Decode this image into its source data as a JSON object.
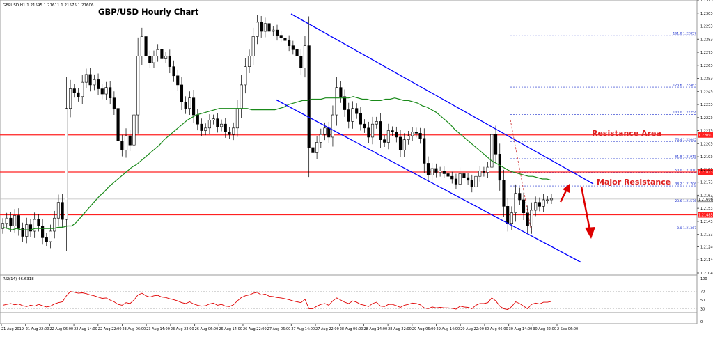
{
  "header": {
    "symbol_info": "GBPUSD,H1  1.21595 1.21611 1.21575 1.21606"
  },
  "chart_data": [
    {
      "type": "candlestick",
      "title": "GBP/USD Hourly Chart",
      "ylim": [
        1.2104,
        1.2313
      ],
      "y_ticks": [
        "1.23130",
        "1.23030",
        "1.22930",
        "1.22830",
        "1.22730",
        "1.22630",
        "1.22530",
        "1.22430",
        "1.22330",
        "1.22230",
        "1.22130",
        "1.22030",
        "1.21930",
        "1.21835",
        "1.21735",
        "1.21635",
        "1.21535",
        "1.21435",
        "1.21335",
        "1.21240",
        "1.21140",
        "1.21040"
      ],
      "x_ticks": [
        "21 Aug 2019",
        "21 Aug 22:00",
        "22 Aug 06:00",
        "22 Aug 14:00",
        "22 Aug 22:00",
        "23 Aug 06:00",
        "23 Aug 14:00",
        "23 Aug 22:00",
        "26 Aug 06:00",
        "26 Aug 14:00",
        "26 Aug 22:00",
        "27 Aug 06:00",
        "27 Aug 14:00",
        "27 Aug 22:00",
        "28 Aug 06:00",
        "28 Aug 14:00",
        "28 Aug 22:00",
        "29 Aug 06:00",
        "29 Aug 14:00",
        "29 Aug 22:00",
        "30 Aug 06:00",
        "30 Aug 14:00",
        "30 Aug 22:00",
        "2 Sep 06:00"
      ],
      "current_price": "1.21606",
      "series": [
        {
          "closes": [
            1.2142,
            1.2146,
            1.214,
            1.2148,
            1.2138,
            1.2132,
            1.2141,
            1.2136,
            1.2145,
            1.214,
            1.2131,
            1.2128,
            1.2136,
            1.2146,
            1.2158,
            1.2145,
            1.223,
            1.2245,
            1.2242,
            1.2239,
            1.225,
            1.2256,
            1.2248,
            1.2252,
            1.2245,
            1.2241,
            1.2246,
            1.2238,
            1.223,
            1.2205,
            1.2198,
            1.2209,
            1.2202,
            1.2225,
            1.227,
            1.2285,
            1.227,
            1.2265,
            1.227,
            1.2275,
            1.2268,
            1.227,
            1.2262,
            1.2255,
            1.2248,
            1.2235,
            1.223,
            1.2238,
            1.2225,
            1.2218,
            1.2213,
            1.2215,
            1.2221,
            1.2222,
            1.2216,
            1.2218,
            1.2212,
            1.221,
            1.2215,
            1.223,
            1.2248,
            1.2262,
            1.227,
            1.2285,
            1.2296,
            1.2289,
            1.2295,
            1.2289,
            1.229,
            1.2286,
            1.2284,
            1.2282,
            1.2278,
            1.2275,
            1.227,
            1.2261,
            1.2278,
            1.22,
            1.2196,
            1.2204,
            1.221,
            1.2215,
            1.2208,
            1.2225,
            1.2246,
            1.2239,
            1.2229,
            1.222,
            1.223,
            1.2226,
            1.2218,
            1.2215,
            1.2208,
            1.2218,
            1.222,
            1.2206,
            1.2204,
            1.2213,
            1.2212,
            1.2208,
            1.2198,
            1.2206,
            1.2209,
            1.2212,
            1.2211,
            1.2207,
            1.2188,
            1.2179,
            1.2184,
            1.2181,
            1.2182,
            1.218,
            1.2178,
            1.2176,
            1.2172,
            1.218,
            1.2177,
            1.2175,
            1.217,
            1.2178,
            1.2182,
            1.2181,
            1.2185,
            1.221,
            1.2195,
            1.2175,
            1.2155,
            1.2142,
            1.215,
            1.2165,
            1.216,
            1.215,
            1.214,
            1.2152,
            1.2158,
            1.2155,
            1.216,
            1.216,
            1.2161
          ]
        },
        {
          "name": "SMA",
          "values": [
            1.2139,
            1.2138,
            1.2137,
            1.2138,
            1.2137,
            1.2137,
            1.2137,
            1.2138,
            1.2138,
            1.2138,
            1.2138,
            1.2138,
            1.2139,
            1.2139,
            1.214,
            1.214,
            1.2143,
            1.2147,
            1.2151,
            1.2155,
            1.2159,
            1.2163,
            1.2166,
            1.217,
            1.2173,
            1.2176,
            1.2179,
            1.2182,
            1.2185,
            1.2187,
            1.219,
            1.2193,
            1.2196,
            1.2199,
            1.2202,
            1.2206,
            1.2209,
            1.2212,
            1.2215,
            1.2218,
            1.2221,
            1.2223,
            1.2225,
            1.2226,
            1.2227,
            1.2228,
            1.2229,
            1.223,
            1.223,
            1.223,
            1.223,
            1.223,
            1.223,
            1.223,
            1.2229,
            1.2229,
            1.2229,
            1.2229,
            1.2229,
            1.2229,
            1.223,
            1.2231,
            1.2233,
            1.2234,
            1.2235,
            1.2236,
            1.2236,
            1.2237,
            1.2237,
            1.2237,
            1.2238,
            1.2238,
            1.2238,
            1.2238,
            1.2238,
            1.2238,
            1.2239,
            1.2238,
            1.2237,
            1.2237,
            1.2236,
            1.2236,
            1.2236,
            1.2237,
            1.2237,
            1.2238,
            1.2237,
            1.2236,
            1.2236,
            1.2235,
            1.2234,
            1.2232,
            1.2231,
            1.2229,
            1.2227,
            1.2224,
            1.2221,
            1.2218,
            1.2214,
            1.2211,
            1.2208,
            1.2205,
            1.2202,
            1.2199,
            1.2196,
            1.2193,
            1.219,
            1.2188,
            1.2186,
            1.2184,
            1.2182,
            1.2181,
            1.218,
            1.2179,
            1.2178,
            1.2178,
            1.2177,
            1.2176,
            1.2176,
            1.2175
          ]
        }
      ],
      "horizontal_levels": [
        {
          "price": 1.22097,
          "label": "1.22097"
        },
        {
          "price": 1.21813,
          "label": "1.21813"
        },
        {
          "price": 1.21485,
          "label": "1.21485"
        }
      ],
      "fib_levels": [
        {
          "label": "161.8 1.22857",
          "price": 1.22857
        },
        {
          "label": "123.6 1.22463",
          "price": 1.22463
        },
        {
          "label": "100.0 1.22254",
          "price": 1.22254
        },
        {
          "label": "76.4 1.22045",
          "price": 1.22045
        },
        {
          "label": "61.8 1.21915",
          "price": 1.21915
        },
        {
          "label": "50.0 1.21810",
          "price": 1.2181
        },
        {
          "label": "38.2 1.21706",
          "price": 1.21706
        },
        {
          "label": "23.6 1.21576",
          "price": 1.21576
        },
        {
          "label": "0.0 1.21367",
          "price": 1.21367
        }
      ],
      "annotations": [
        "Resistance Area",
        "Major Resistance"
      ],
      "colors": {
        "channel": "#0000ff",
        "sma": "#1a8a1a",
        "level": "#ff2020",
        "arrow": "#dd0000",
        "fib": "#1a2ecc"
      }
    },
    {
      "type": "line",
      "label": "RSI(14) 46.6318",
      "ylim": [
        0,
        100
      ],
      "y_ticks": [
        "100",
        "70",
        "50",
        "30",
        "0"
      ],
      "values": [
        38,
        40,
        42,
        39,
        41,
        37,
        35,
        38,
        36,
        40,
        37,
        34,
        36,
        41,
        44,
        46,
        60,
        70,
        68,
        66,
        67,
        65,
        62,
        60,
        57,
        54,
        55,
        50,
        46,
        40,
        38,
        44,
        42,
        50,
        62,
        66,
        60,
        57,
        60,
        61,
        57,
        56,
        53,
        51,
        48,
        44,
        42,
        46,
        41,
        38,
        36,
        37,
        41,
        43,
        38,
        40,
        36,
        35,
        39,
        48,
        56,
        60,
        62,
        66,
        68,
        62,
        64,
        59,
        58,
        56,
        55,
        53,
        51,
        48,
        46,
        44,
        52,
        30,
        30,
        36,
        40,
        42,
        38,
        48,
        55,
        50,
        45,
        42,
        48,
        45,
        40,
        38,
        35,
        42,
        45,
        36,
        35,
        40,
        40,
        37,
        33,
        38,
        40,
        43,
        42,
        39,
        32,
        30,
        34,
        32,
        33,
        32,
        32,
        31,
        29,
        36,
        34,
        33,
        30,
        38,
        42,
        42,
        44,
        55,
        48,
        36,
        30,
        28,
        35,
        46,
        42,
        36,
        30,
        40,
        43,
        41,
        45,
        45,
        47
      ]
    }
  ]
}
